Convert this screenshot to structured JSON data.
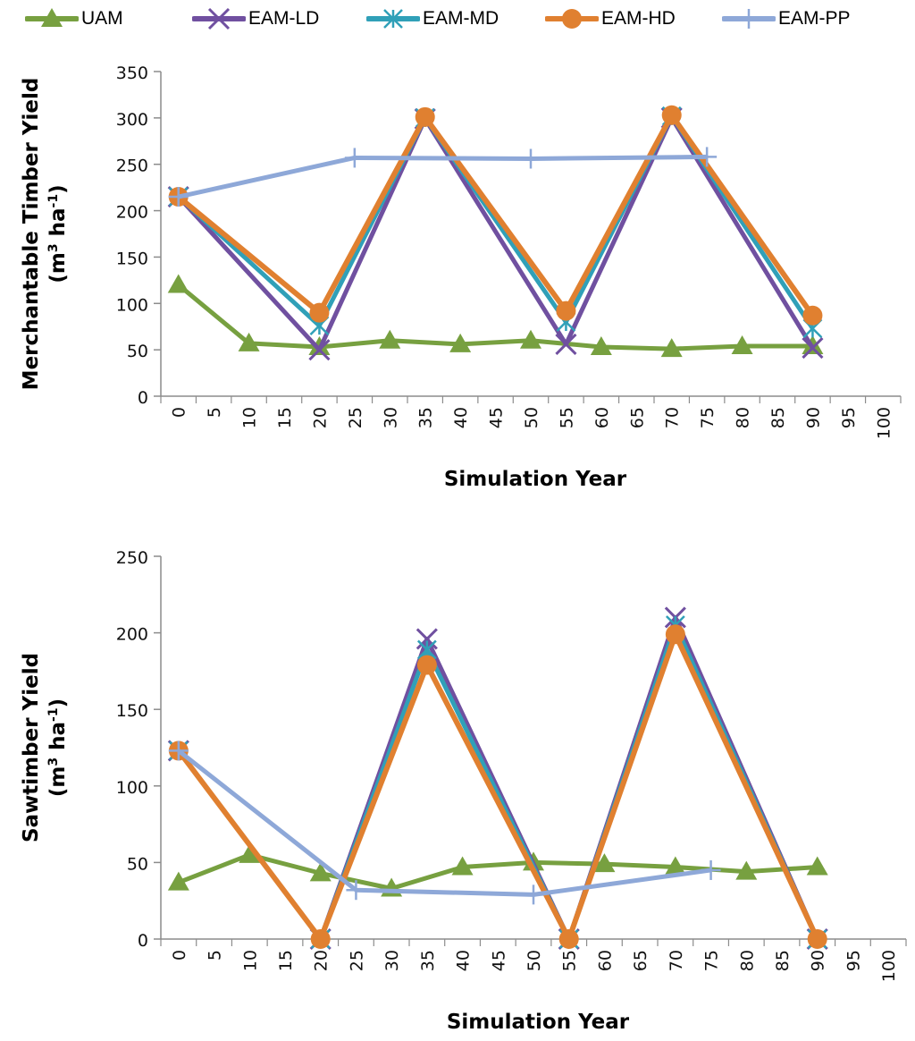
{
  "legend": [
    {
      "name": "UAM",
      "color": "#77A040",
      "marker": "triangle"
    },
    {
      "name": "EAM-LD",
      "color": "#7050A0",
      "marker": "x"
    },
    {
      "name": "EAM-MD",
      "color": "#30A0B8",
      "marker": "star"
    },
    {
      "name": "EAM-HD",
      "color": "#E08030",
      "marker": "circle"
    },
    {
      "name": "EAM-PP",
      "color": "#8EA8D8",
      "marker": "plus"
    }
  ],
  "chart_data": [
    {
      "type": "line",
      "title": "",
      "xlabel": "Simulation Year",
      "ylabel": "Merchantable Timber Yield",
      "ylabel_units": "(m3 ha-1)",
      "categories": [
        "0",
        "5",
        "10",
        "15",
        "20",
        "25",
        "30",
        "35",
        "40",
        "45",
        "50",
        "55",
        "60",
        "65",
        "70",
        "75",
        "80",
        "85",
        "90",
        "95",
        "100"
      ],
      "ylim": [
        0,
        350
      ],
      "yticks": [
        0,
        50,
        100,
        150,
        200,
        250,
        300,
        350
      ],
      "grid": false,
      "legend_position": "top",
      "series": [
        {
          "name": "UAM",
          "points": [
            [
              0,
              120
            ],
            [
              10,
              57
            ],
            [
              20,
              53
            ],
            [
              30,
              60
            ],
            [
              40,
              56
            ],
            [
              50,
              60
            ],
            [
              60,
              53
            ],
            [
              70,
              51
            ],
            [
              80,
              54
            ],
            [
              90,
              54
            ]
          ]
        },
        {
          "name": "EAM-LD",
          "points": [
            [
              0,
              215
            ],
            [
              20,
              50
            ],
            [
              35,
              299
            ],
            [
              55,
              56
            ],
            [
              70,
              300
            ],
            [
              90,
              52
            ]
          ]
        },
        {
          "name": "EAM-MD",
          "points": [
            [
              0,
              215
            ],
            [
              20,
              76
            ],
            [
              35,
              300
            ],
            [
              55,
              80
            ],
            [
              70,
              302
            ],
            [
              90,
              73
            ]
          ]
        },
        {
          "name": "EAM-HD",
          "points": [
            [
              0,
              215
            ],
            [
              20,
              90
            ],
            [
              35,
              301
            ],
            [
              55,
              92
            ],
            [
              70,
              303
            ],
            [
              90,
              87
            ]
          ]
        },
        {
          "name": "EAM-PP",
          "points": [
            [
              0,
              215
            ],
            [
              25,
              257
            ],
            [
              50,
              256
            ],
            [
              75,
              258
            ]
          ]
        }
      ]
    },
    {
      "type": "line",
      "title": "",
      "xlabel": "Simulation Year",
      "ylabel": "Sawtimber Yield",
      "ylabel_units": "(m3 ha-1)",
      "categories": [
        "0",
        "5",
        "10",
        "15",
        "20",
        "25",
        "30",
        "35",
        "40",
        "45",
        "50",
        "55",
        "60",
        "65",
        "70",
        "75",
        "80",
        "85",
        "90",
        "95",
        "100"
      ],
      "ylim": [
        0,
        250
      ],
      "yticks": [
        0,
        50,
        100,
        150,
        200,
        250
      ],
      "grid": false,
      "legend_position": "top",
      "series": [
        {
          "name": "UAM",
          "points": [
            [
              0,
              37
            ],
            [
              10,
              55
            ],
            [
              20,
              43
            ],
            [
              30,
              33
            ],
            [
              40,
              47
            ],
            [
              50,
              50
            ],
            [
              60,
              49
            ],
            [
              70,
              47
            ],
            [
              80,
              44
            ],
            [
              90,
              47
            ]
          ]
        },
        {
          "name": "EAM-LD",
          "points": [
            [
              0,
              123
            ],
            [
              20,
              0
            ],
            [
              35,
              196
            ],
            [
              55,
              0
            ],
            [
              70,
              210
            ],
            [
              90,
              0
            ]
          ]
        },
        {
          "name": "EAM-MD",
          "points": [
            [
              0,
              123
            ],
            [
              20,
              0
            ],
            [
              35,
              189
            ],
            [
              55,
              0
            ],
            [
              70,
              205
            ],
            [
              90,
              0
            ]
          ]
        },
        {
          "name": "EAM-HD",
          "points": [
            [
              0,
              123
            ],
            [
              20,
              0
            ],
            [
              35,
              179
            ],
            [
              55,
              0
            ],
            [
              70,
              199
            ],
            [
              90,
              0
            ]
          ]
        },
        {
          "name": "EAM-PP",
          "points": [
            [
              0,
              123
            ],
            [
              25,
              32
            ],
            [
              50,
              29
            ],
            [
              75,
              45
            ]
          ]
        }
      ]
    }
  ]
}
